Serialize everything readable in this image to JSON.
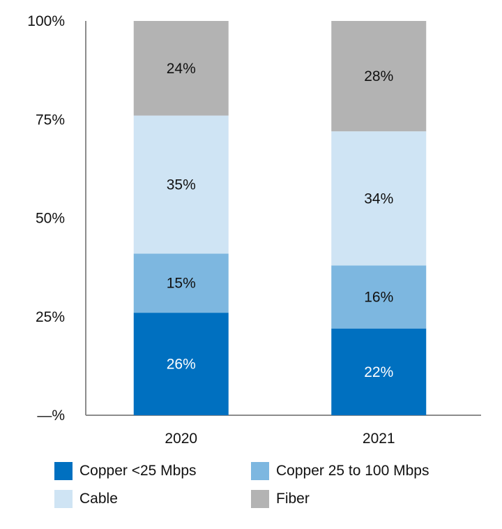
{
  "chart_data": {
    "type": "bar",
    "stacked": true,
    "categories": [
      "2020",
      "2021"
    ],
    "y_ticks": [
      "—%",
      "25%",
      "50%",
      "75%",
      "100%"
    ],
    "ylim": [
      0,
      100
    ],
    "series": [
      {
        "name": "Copper <25 Mbps",
        "color": "#0070c0",
        "label_color": "#ffffff",
        "values": [
          26,
          22
        ],
        "labels": [
          "26%",
          "22%"
        ]
      },
      {
        "name": "Copper 25 to 100 Mbps",
        "color": "#7db7e0",
        "label_color": "#111111",
        "values": [
          15,
          16
        ],
        "labels": [
          "15%",
          "16%"
        ]
      },
      {
        "name": "Cable",
        "color": "#cfe4f4",
        "label_color": "#111111",
        "values": [
          35,
          34
        ],
        "labels": [
          "35%",
          "34%"
        ]
      },
      {
        "name": "Fiber",
        "color": "#b3b3b3",
        "label_color": "#111111",
        "values": [
          24,
          28
        ],
        "labels": [
          "24%",
          "28%"
        ]
      }
    ],
    "legend_position": "bottom",
    "grid": false
  }
}
